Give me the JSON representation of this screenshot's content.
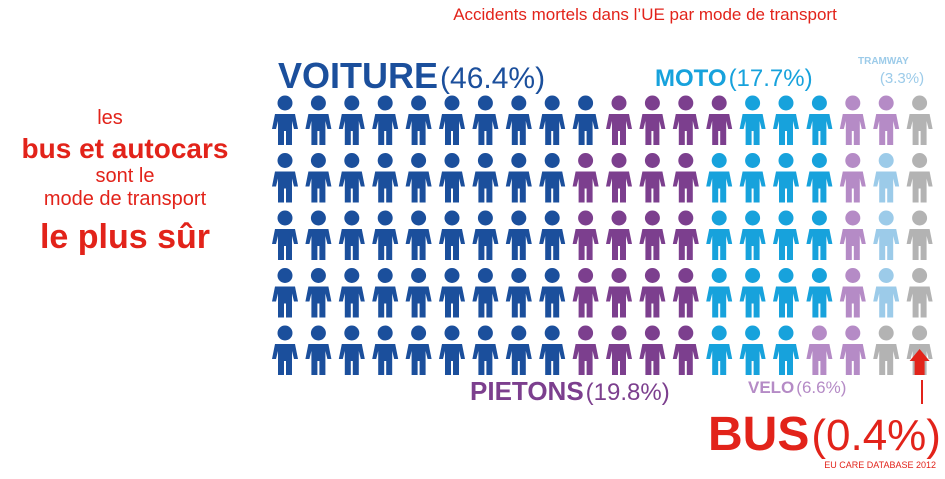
{
  "chart_data": {
    "type": "pictogram",
    "title": "Accidents mortels dans l’UE par mode de transport",
    "tagline": [
      "les",
      "bus et autocars",
      "sont le",
      "mode de transport",
      "le plus sûr"
    ],
    "series": [
      {
        "name": "VOITURE",
        "value": 46.4,
        "value_label": "(46.4%)",
        "color": "#1b4f9c"
      },
      {
        "name": "PIETONS",
        "value": 19.8,
        "value_label": "(19.8%)",
        "color": "#7c3f8e"
      },
      {
        "name": "MOTO",
        "value": 17.7,
        "value_label": "(17.7%)",
        "color": "#17a2dc"
      },
      {
        "name": "VELO",
        "value": 6.6,
        "value_label": "(6.6%)",
        "color": "#b58bc6"
      },
      {
        "name": "TRAMWAY",
        "value": 3.3,
        "value_label": "(3.3%)",
        "color": "#9ccbe9"
      },
      {
        "name": "BUS",
        "value": 0.4,
        "value_label": "(0.4%)",
        "color": "#e2231a"
      }
    ],
    "source": "EU CARE DATABASE 2012"
  }
}
